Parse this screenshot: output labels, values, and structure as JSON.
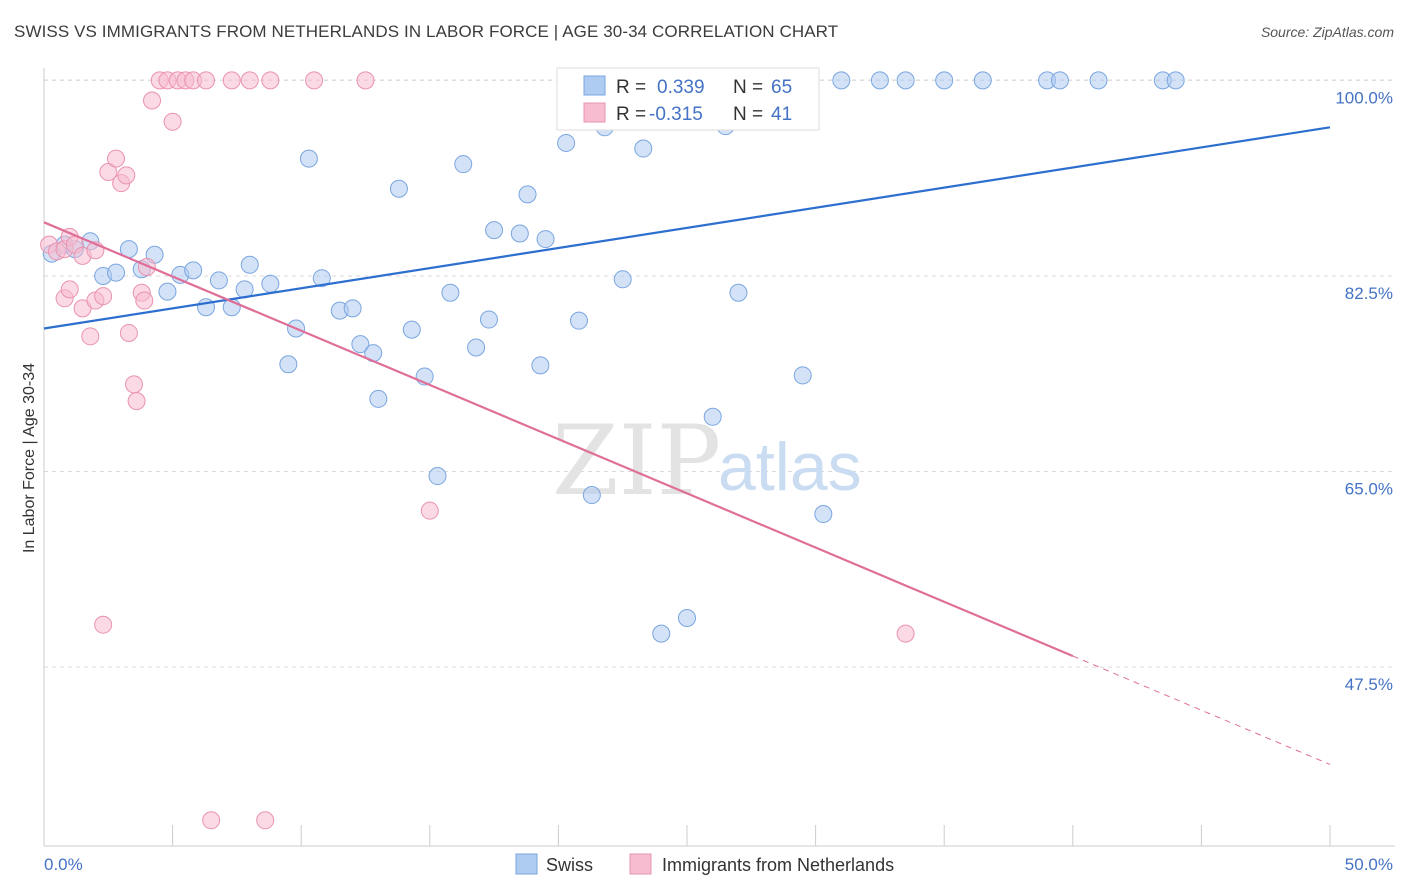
{
  "header": {
    "title": "SWISS VS IMMIGRANTS FROM NETHERLANDS IN LABOR FORCE | AGE 30-34 CORRELATION CHART",
    "source": "Source: ZipAtlas.com"
  },
  "watermark": {
    "part1": "ZIP",
    "part2": "atlas"
  },
  "colors": {
    "swiss_fill": "#aecbf1",
    "swiss_stroke": "#7aa6e0",
    "swiss_line": "#2c6fce",
    "neth_fill": "#f7bcd0",
    "neth_stroke": "#e993b0",
    "neth_line": "#df6f98",
    "tick_text": "#4472c4",
    "grid": "#d9d9d9"
  },
  "chart_data": {
    "type": "scatter",
    "title": "SWISS VS IMMIGRANTS FROM NETHERLANDS IN LABOR FORCE | AGE 30-34 CORRELATION CHART",
    "xlabel": "",
    "ylabel": "In Labor Force | Age 30-34",
    "xlim": [
      0,
      50
    ],
    "ylim": [
      31.5,
      102
    ],
    "x_tick_labels": [
      {
        "value": 0,
        "label": "0.0%"
      },
      {
        "value": 50,
        "label": "50.0%"
      }
    ],
    "y_tick_labels": [
      {
        "value": 100,
        "label": "100.0%"
      },
      {
        "value": 82.5,
        "label": "82.5%"
      },
      {
        "value": 65,
        "label": "65.0%"
      },
      {
        "value": 47.5,
        "label": "47.5%"
      }
    ],
    "grid": true,
    "legend_position": "bottom-center",
    "stats": [
      {
        "r_label": "R =",
        "r_value": "0.339",
        "n_label": "N =",
        "n_value": "65"
      },
      {
        "r_label": "R =",
        "r_value": "-0.315",
        "n_label": "N =",
        "n_value": "41"
      }
    ],
    "series": [
      {
        "name": "Swiss",
        "trend": {
          "x0": 0,
          "y0": 77.8,
          "x1": 50,
          "y1": 95.8
        },
        "points": [
          [
            0.3,
            84.5
          ],
          [
            0.8,
            85.3
          ],
          [
            1.2,
            84.9
          ],
          [
            1.8,
            85.6
          ],
          [
            2.3,
            82.5
          ],
          [
            2.8,
            82.8
          ],
          [
            3.3,
            84.9
          ],
          [
            3.8,
            83.1
          ],
          [
            4.3,
            84.4
          ],
          [
            4.8,
            81.1
          ],
          [
            5.3,
            82.6
          ],
          [
            5.8,
            83.0
          ],
          [
            6.3,
            79.7
          ],
          [
            6.8,
            82.1
          ],
          [
            7.3,
            79.7
          ],
          [
            7.8,
            81.3
          ],
          [
            8.0,
            83.5
          ],
          [
            8.8,
            81.8
          ],
          [
            9.8,
            77.8
          ],
          [
            9.5,
            74.6
          ],
          [
            10.3,
            93.0
          ],
          [
            10.8,
            82.3
          ],
          [
            11.5,
            79.4
          ],
          [
            12.0,
            79.6
          ],
          [
            12.3,
            76.4
          ],
          [
            12.8,
            75.6
          ],
          [
            13.0,
            71.5
          ],
          [
            13.8,
            90.3
          ],
          [
            14.3,
            77.7
          ],
          [
            14.8,
            73.5
          ],
          [
            15.3,
            64.6
          ],
          [
            15.8,
            81.0
          ],
          [
            16.3,
            92.5
          ],
          [
            16.8,
            76.1
          ],
          [
            17.3,
            78.6
          ],
          [
            17.5,
            86.6
          ],
          [
            18.8,
            89.8
          ],
          [
            18.5,
            86.3
          ],
          [
            19.3,
            74.5
          ],
          [
            19.5,
            85.8
          ],
          [
            20.3,
            94.4
          ],
          [
            20.8,
            78.5
          ],
          [
            21.3,
            62.9
          ],
          [
            21.8,
            95.8
          ],
          [
            22.5,
            82.2
          ],
          [
            23.3,
            93.9
          ],
          [
            22.8,
            100.0
          ],
          [
            24.0,
            50.5
          ],
          [
            25.0,
            51.9
          ],
          [
            25.3,
            100.0
          ],
          [
            26.0,
            69.9
          ],
          [
            26.5,
            95.9
          ],
          [
            27.0,
            81.0
          ],
          [
            29.5,
            73.6
          ],
          [
            30.3,
            61.2
          ],
          [
            31.0,
            100.0
          ],
          [
            32.5,
            100.0
          ],
          [
            33.5,
            100.0
          ],
          [
            35.0,
            100.0
          ],
          [
            36.5,
            100.0
          ],
          [
            39.0,
            100.0
          ],
          [
            39.5,
            100.0
          ],
          [
            41.0,
            100.0
          ],
          [
            43.5,
            100.0
          ],
          [
            44.0,
            100.0
          ]
        ]
      },
      {
        "name": "Immigrants from Netherlands",
        "trend": {
          "x0": 0,
          "y0": 87.3,
          "x1": 40,
          "y1": 48.5,
          "dash_to": {
            "x": 50,
            "y": 38.8
          }
        },
        "points": [
          [
            0.2,
            85.3
          ],
          [
            0.5,
            84.7
          ],
          [
            0.8,
            84.9
          ],
          [
            1.0,
            86.0
          ],
          [
            1.2,
            85.3
          ],
          [
            1.5,
            84.3
          ],
          [
            0.8,
            80.5
          ],
          [
            1.0,
            81.3
          ],
          [
            1.5,
            79.6
          ],
          [
            1.8,
            77.1
          ],
          [
            2.0,
            80.3
          ],
          [
            2.3,
            80.7
          ],
          [
            2.5,
            91.8
          ],
          [
            2.8,
            93.0
          ],
          [
            3.0,
            90.8
          ],
          [
            3.2,
            91.5
          ],
          [
            3.3,
            77.4
          ],
          [
            3.5,
            72.8
          ],
          [
            3.6,
            71.3
          ],
          [
            3.8,
            81.0
          ],
          [
            3.9,
            80.3
          ],
          [
            4.0,
            83.3
          ],
          [
            4.2,
            98.2
          ],
          [
            4.5,
            100.0
          ],
          [
            4.8,
            100.0
          ],
          [
            5.0,
            96.3
          ],
          [
            5.2,
            100.0
          ],
          [
            5.5,
            100.0
          ],
          [
            5.8,
            100.0
          ],
          [
            6.3,
            100.0
          ],
          [
            7.3,
            100.0
          ],
          [
            8.0,
            100.0
          ],
          [
            8.8,
            100.0
          ],
          [
            10.5,
            100.0
          ],
          [
            12.5,
            100.0
          ],
          [
            15.0,
            61.5
          ],
          [
            2.3,
            51.3
          ],
          [
            6.5,
            33.8
          ],
          [
            8.6,
            33.8
          ],
          [
            33.5,
            50.5
          ],
          [
            2.0,
            84.8
          ]
        ]
      }
    ]
  }
}
